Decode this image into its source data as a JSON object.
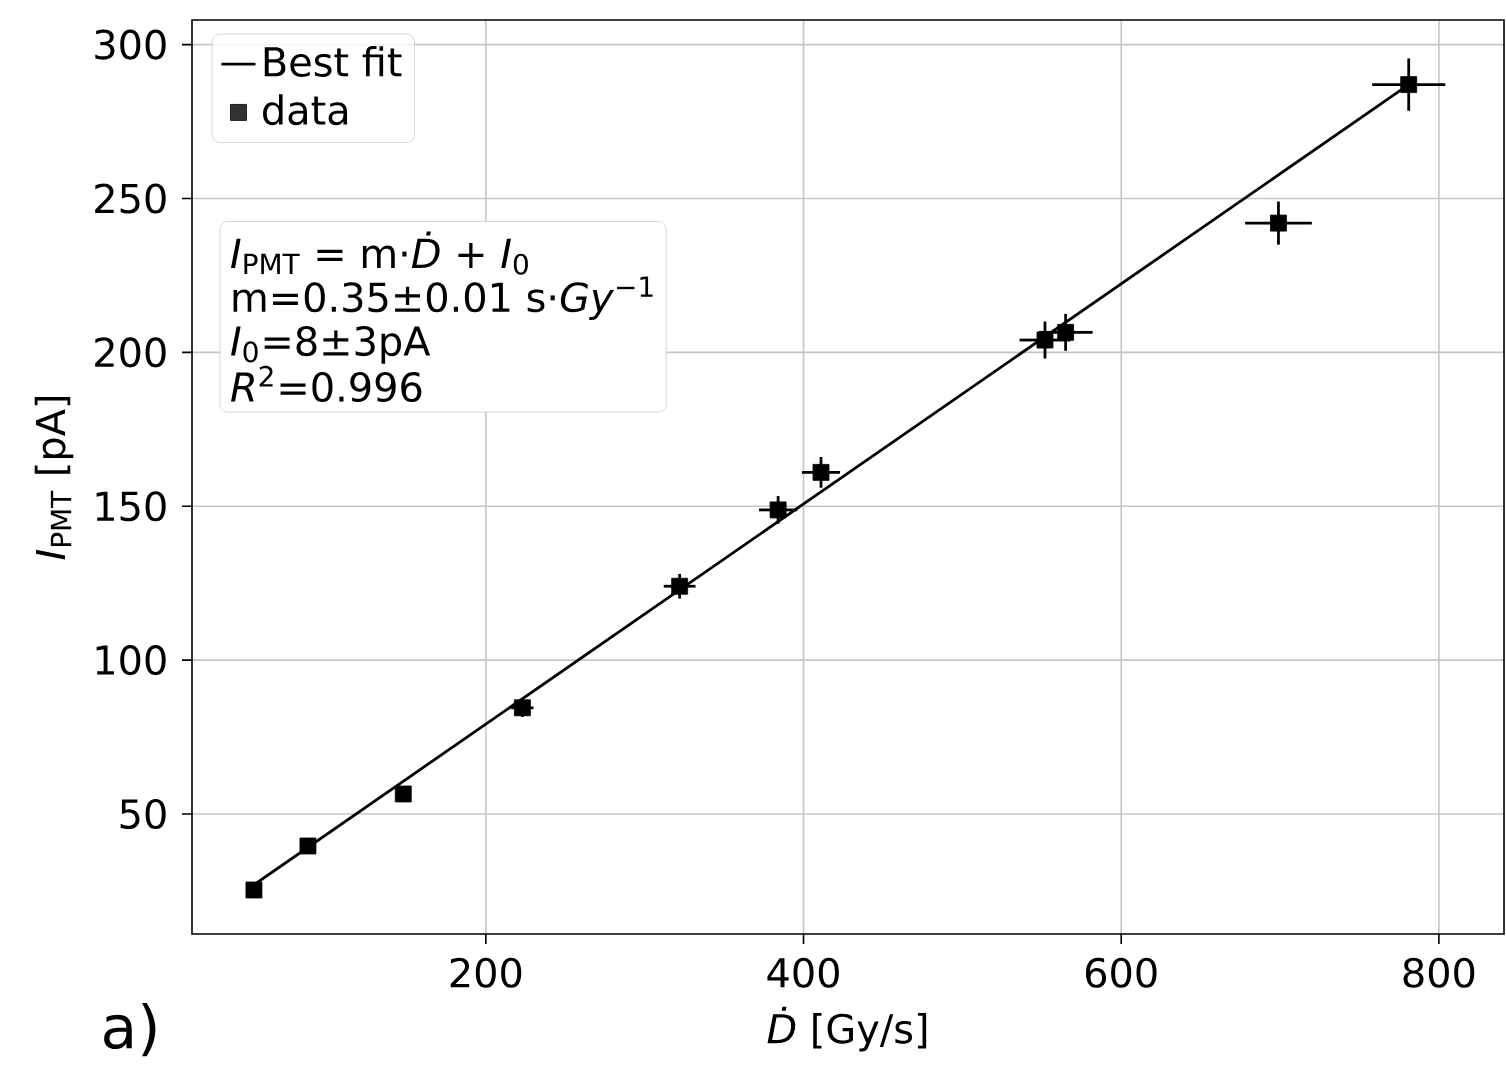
{
  "chart_data": {
    "type": "scatter",
    "xlabel": "*Ḋ* [Gy/s]",
    "ylabel": "*I*$_{PMT}$ [pA]",
    "xlim": [
      15,
      841
    ],
    "ylim": [
      11,
      308
    ],
    "xticks": [
      200,
      400,
      600,
      800
    ],
    "yticks": [
      50,
      100,
      150,
      200,
      250,
      300
    ],
    "grid": true,
    "legend": "top left",
    "series": [
      {
        "name": "Best fit",
        "type": "line",
        "color": "#000000",
        "x": [
          54,
          781
        ],
        "values": [
          27,
          287
        ]
      },
      {
        "name": "data",
        "color": "#000000",
        "marker": "square",
        "x": [
          54,
          88,
          148,
          223,
          322,
          384,
          411,
          552,
          565,
          699,
          781
        ],
        "values": [
          25.3,
          39.6,
          56.5,
          84.5,
          124,
          148.8,
          161,
          204,
          206.5,
          242,
          287
        ],
        "errors": [
          1,
          1,
          2,
          3,
          4,
          4.5,
          5,
          6,
          6,
          7,
          8.5
        ],
        "xerrors": [
          2,
          3,
          4,
          7,
          10,
          12,
          12,
          16,
          17,
          21,
          23
        ]
      }
    ],
    "annotations": [
      "*I*$_{PMT}$ = m·*Ḋ* + *I*$_{0}$",
      "m=0.35±0.01 s·*Gy*$^{−1}$",
      "*I*$_{0}$=8±3pA",
      "*R*$^{2}$=0.996",
      "a)"
    ]
  }
}
